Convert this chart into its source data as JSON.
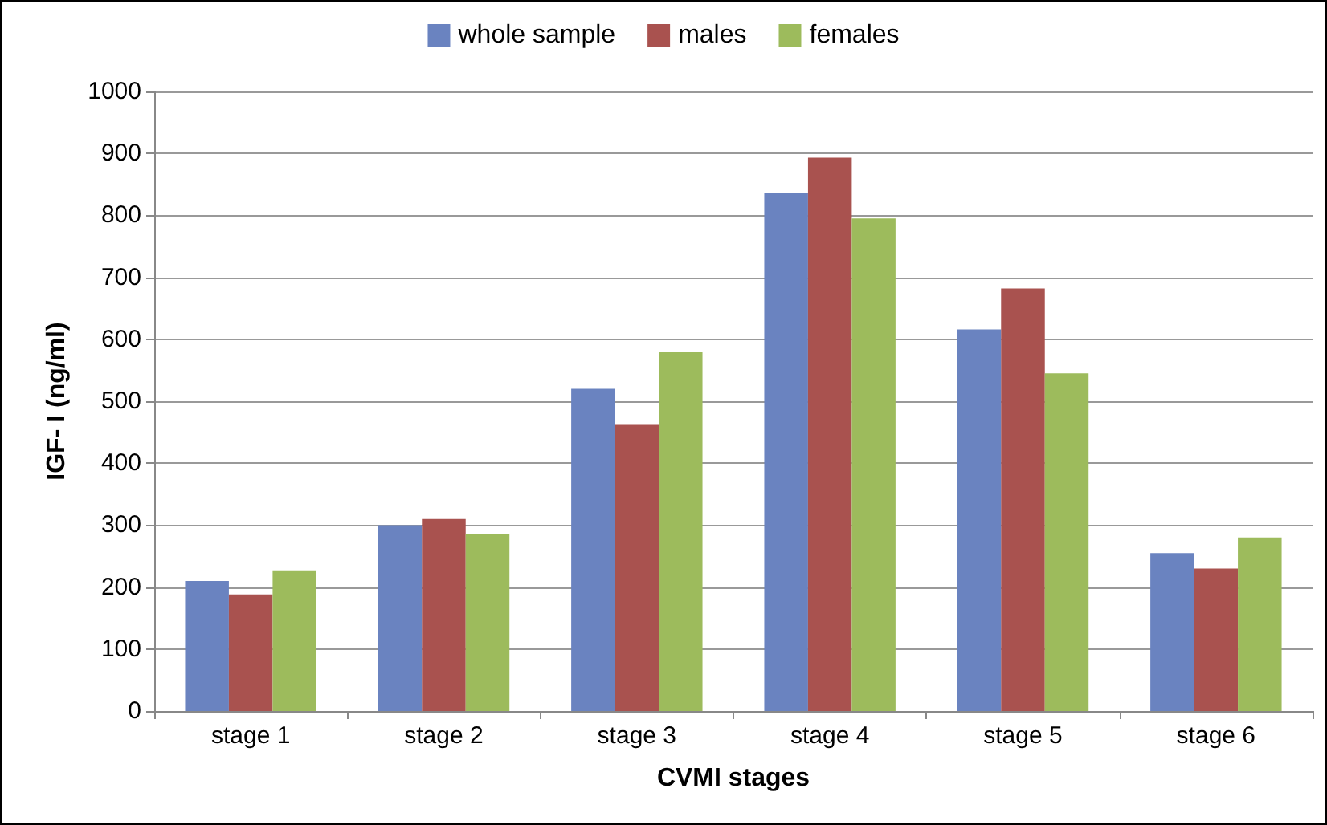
{
  "chart_data": {
    "type": "bar",
    "xlabel": "CVMI stages",
    "ylabel": "IGF- I (ng/ml)",
    "categories": [
      "stage 1",
      "stage 2",
      "stage 3",
      "stage 4",
      "stage 5",
      "stage 6"
    ],
    "series": [
      {
        "name": "whole sample",
        "color": "#6a83c0",
        "values": [
          210,
          300,
          520,
          836,
          616,
          255
        ]
      },
      {
        "name": "males",
        "color": "#a9524f",
        "values": [
          188,
          310,
          463,
          893,
          682,
          230
        ]
      },
      {
        "name": "females",
        "color": "#9dbb5c",
        "values": [
          227,
          285,
          580,
          795,
          545,
          280
        ]
      }
    ],
    "ylim": [
      0,
      1000
    ],
    "yticks": [
      0,
      100,
      200,
      300,
      400,
      500,
      600,
      700,
      800,
      900,
      1000
    ],
    "grid": "y",
    "legend": "top"
  }
}
